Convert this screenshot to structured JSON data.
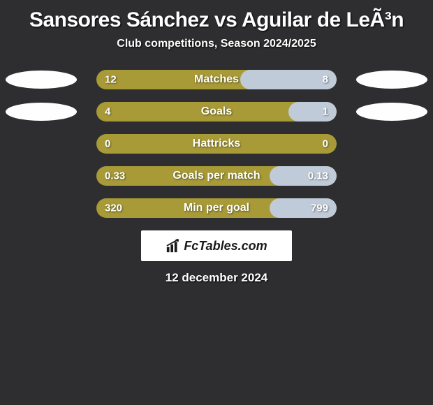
{
  "title": "Sansores Sánchez vs Aguilar de LeÃ³n",
  "subtitle": "Club competitions, Season 2024/2025",
  "date": "12 december 2024",
  "branding": "FcTables.com",
  "colors": {
    "background": "#2e2e30",
    "bar_left": "#a79a37",
    "bar_right": "#bfcbd8",
    "photo_bg": "#fefefe",
    "text": "#ffffff",
    "brand_bg": "#ffffff",
    "brand_text": "#1a1a1a"
  },
  "stats": [
    {
      "label": "Matches",
      "left_value": "12",
      "right_value": "8",
      "left_num": 12,
      "right_num": 8,
      "right_pct": 40,
      "show_photos": true
    },
    {
      "label": "Goals",
      "left_value": "4",
      "right_value": "1",
      "left_num": 4,
      "right_num": 1,
      "right_pct": 20,
      "show_photos": true
    },
    {
      "label": "Hattricks",
      "left_value": "0",
      "right_value": "0",
      "left_num": 0,
      "right_num": 0,
      "right_pct": 0,
      "show_photos": false
    },
    {
      "label": "Goals per match",
      "left_value": "0.33",
      "right_value": "0.13",
      "left_num": 0.33,
      "right_num": 0.13,
      "right_pct": 28,
      "show_photos": false
    },
    {
      "label": "Min per goal",
      "left_value": "320",
      "right_value": "799",
      "left_num": 320,
      "right_num": 799,
      "right_pct": 28,
      "show_photos": false
    }
  ]
}
